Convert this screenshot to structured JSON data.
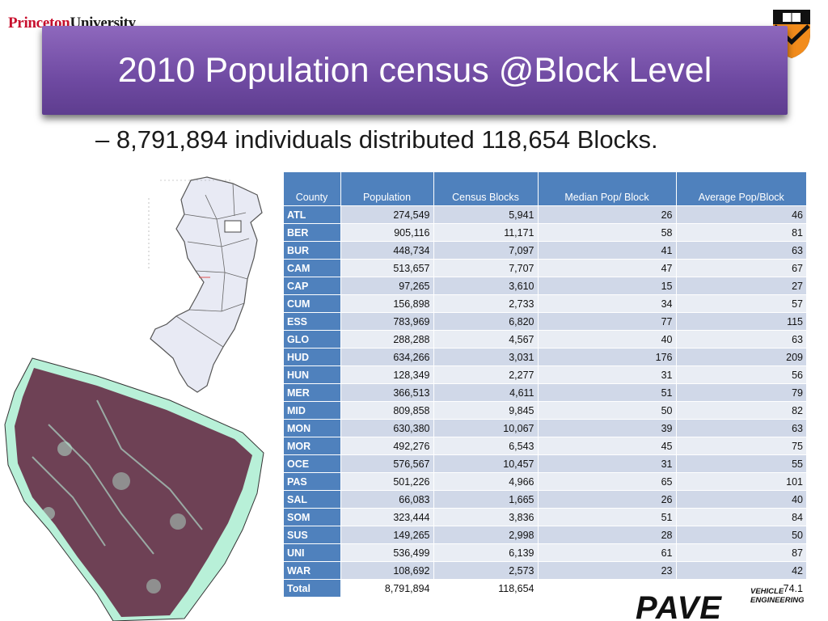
{
  "header": {
    "brand_red": "Princeton",
    "brand_black": "University"
  },
  "slide": {
    "title": "2010 Population census @Block Level",
    "bullet": "– 8,791,894 individuals distributed 118,654  Blocks."
  },
  "table": {
    "headers": [
      "County",
      "Population",
      "Census Blocks",
      "Median Pop/ Block",
      "Average Pop/Block"
    ],
    "rows": [
      [
        "ATL",
        "274,549",
        "5,941",
        "26",
        "46"
      ],
      [
        "BER",
        "905,116",
        "11,171",
        "58",
        "81"
      ],
      [
        "BUR",
        "448,734",
        "7,097",
        "41",
        "63"
      ],
      [
        "CAM",
        "513,657",
        "7,707",
        "47",
        "67"
      ],
      [
        "CAP",
        "97,265",
        "3,610",
        "15",
        "27"
      ],
      [
        "CUM",
        "156,898",
        "2,733",
        "34",
        "57"
      ],
      [
        "ESS",
        "783,969",
        "6,820",
        "77",
        "115"
      ],
      [
        "GLO",
        "288,288",
        "4,567",
        "40",
        "63"
      ],
      [
        "HUD",
        "634,266",
        "3,031",
        "176",
        "209"
      ],
      [
        "HUN",
        "128,349",
        "2,277",
        "31",
        "56"
      ],
      [
        "MER",
        "366,513",
        "4,611",
        "51",
        "79"
      ],
      [
        "MID",
        "809,858",
        "9,845",
        "50",
        "82"
      ],
      [
        "MON",
        "630,380",
        "10,067",
        "39",
        "63"
      ],
      [
        "MOR",
        "492,276",
        "6,543",
        "45",
        "75"
      ],
      [
        "OCE",
        "576,567",
        "10,457",
        "31",
        "55"
      ],
      [
        "PAS",
        "501,226",
        "4,966",
        "65",
        "101"
      ],
      [
        "SAL",
        "66,083",
        "1,665",
        "26",
        "40"
      ],
      [
        "SOM",
        "323,444",
        "3,836",
        "51",
        "84"
      ],
      [
        "SUS",
        "149,265",
        "2,998",
        "28",
        "50"
      ],
      [
        "UNI",
        "536,499",
        "6,139",
        "61",
        "87"
      ],
      [
        "WAR",
        "108,692",
        "2,573",
        "23",
        "42"
      ],
      [
        "Total",
        "8,791,894",
        "118,654",
        "",
        "74.1"
      ]
    ]
  },
  "footer_logo": {
    "line1": "VEHICLE",
    "line2": "ENGINEERING"
  },
  "colors": {
    "title_band": "#7452a8",
    "table_header": "#4f81bd",
    "row_odd": "#d0d8e8",
    "row_even": "#e9edf4",
    "map_fill": "#e8eaf4",
    "map_green": "#b8f0d8",
    "dots": "#5a1030"
  }
}
